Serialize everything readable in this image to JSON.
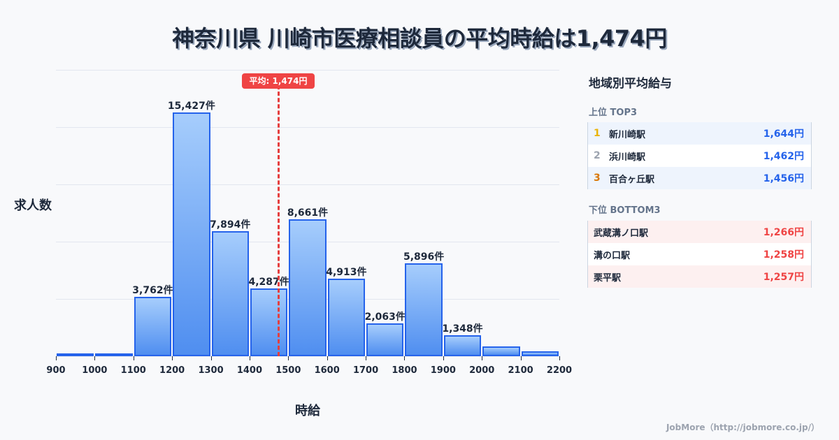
{
  "title": "神奈川県 川崎市医療相談員の平均時給は1,474円",
  "chart_data": {
    "type": "bar",
    "title": "神奈川県 川崎市医療相談員の平均時給は1,474円",
    "xlabel": "時給",
    "ylabel": "求人数",
    "x_ticks": [
      "900",
      "1000",
      "1100",
      "1200",
      "1300",
      "1400",
      "1500",
      "1600",
      "1700",
      "1800",
      "1900",
      "2000",
      "2100",
      "2200"
    ],
    "bins": [
      {
        "from": 900,
        "to": 1000,
        "value": 40,
        "label": ""
      },
      {
        "from": 1000,
        "to": 1100,
        "value": 120,
        "label": ""
      },
      {
        "from": 1100,
        "to": 1200,
        "value": 3762,
        "label": "3,762件"
      },
      {
        "from": 1200,
        "to": 1300,
        "value": 15427,
        "label": "15,427件"
      },
      {
        "from": 1300,
        "to": 1400,
        "value": 7894,
        "label": "7,894件"
      },
      {
        "from": 1400,
        "to": 1500,
        "value": 4287,
        "label": "4,287件"
      },
      {
        "from": 1500,
        "to": 1600,
        "value": 8661,
        "label": "8,661件"
      },
      {
        "from": 1600,
        "to": 1700,
        "value": 4913,
        "label": "4,913件"
      },
      {
        "from": 1700,
        "to": 1800,
        "value": 2063,
        "label": "2,063件"
      },
      {
        "from": 1800,
        "to": 1900,
        "value": 5896,
        "label": "5,896件"
      },
      {
        "from": 1900,
        "to": 2000,
        "value": 1348,
        "label": "1,348件"
      },
      {
        "from": 2000,
        "to": 2100,
        "value": 600,
        "label": ""
      },
      {
        "from": 2100,
        "to": 2200,
        "value": 330,
        "label": ""
      }
    ],
    "xlim": [
      900,
      2200
    ],
    "ylim": [
      0,
      18125
    ],
    "grid": true,
    "average": {
      "value": 1474,
      "label": "平均: 1,474円",
      "color": "#ef4444"
    },
    "bar_color": "#4f8ef0",
    "bar_border": "#2563eb"
  },
  "axis": {
    "y_label": "求人数",
    "x_label": "時給"
  },
  "average_badge": "平均: 1,474円",
  "panel": {
    "title": "地域別平均給与",
    "top": {
      "heading": "上位 TOP3",
      "items": [
        {
          "rank": "1",
          "name": "新川崎駅",
          "value": "1,644円",
          "rank_color": "#eab308"
        },
        {
          "rank": "2",
          "name": "浜川崎駅",
          "value": "1,462円",
          "rank_color": "#9ca3af"
        },
        {
          "rank": "3",
          "name": "百合ヶ丘駅",
          "value": "1,456円",
          "rank_color": "#d97706"
        }
      ],
      "value_color": "#2563eb"
    },
    "bottom": {
      "heading": "下位 BOTTOM3",
      "items": [
        {
          "name": "武蔵溝ノ口駅",
          "value": "1,266円"
        },
        {
          "name": "溝の口駅",
          "value": "1,258円"
        },
        {
          "name": "栗平駅",
          "value": "1,257円"
        }
      ],
      "value_color": "#ef4444"
    }
  },
  "footer": "JobMore（http://jobmore.co.jp/）"
}
